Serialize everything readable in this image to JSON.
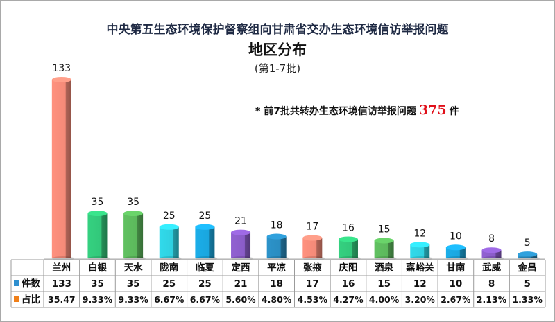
{
  "title": "中央第五生态环境保护督察组向甘肃省交办生态环境信访举报问题",
  "subtitle": "地区分布",
  "batch": "(第1-7批)",
  "note": {
    "prefix": "* 前7批共转办生态环境信访举报问题",
    "total": "375",
    "suffix": "件"
  },
  "table": {
    "row1_label": "件数",
    "row2_label": "占比",
    "row1_marker_color": "#2e8fcf",
    "row2_marker_color": "#f0801a"
  },
  "chart_data": {
    "type": "bar",
    "categories": [
      "兰州",
      "白银",
      "天水",
      "陇南",
      "临夏",
      "定西",
      "平凉",
      "张掖",
      "庆阳",
      "酒泉",
      "嘉峪关",
      "甘南",
      "武威",
      "金昌"
    ],
    "series": [
      {
        "values": [
          133,
          35,
          35,
          25,
          25,
          21,
          18,
          17,
          16,
          15,
          12,
          10,
          8,
          5
        ]
      }
    ],
    "value_labels": [
      "133",
      "35",
      "35",
      "25",
      "25",
      "21",
      "18",
      "17",
      "16",
      "15",
      "12",
      "10",
      "8",
      "5"
    ],
    "share_labels": [
      "35.47",
      "9.33%",
      "9.33%",
      "6.67%",
      "6.67%",
      "5.60%",
      "4.80%",
      "4.53%",
      "4.27%",
      "4.00%",
      "3.20%",
      "2.67%",
      "2.13%",
      "1.33%"
    ],
    "colors": [
      "#f38a78",
      "#32c77a",
      "#5cb85c",
      "#2fd0e0",
      "#1aa6de",
      "#8a5cc8",
      "#2a8cc0",
      "#f38a78",
      "#32c77a",
      "#5cb85c",
      "#2fd0e0",
      "#1aa6de",
      "#8a5cc8",
      "#2a8cc0"
    ],
    "ylim": [
      0,
      133
    ]
  }
}
